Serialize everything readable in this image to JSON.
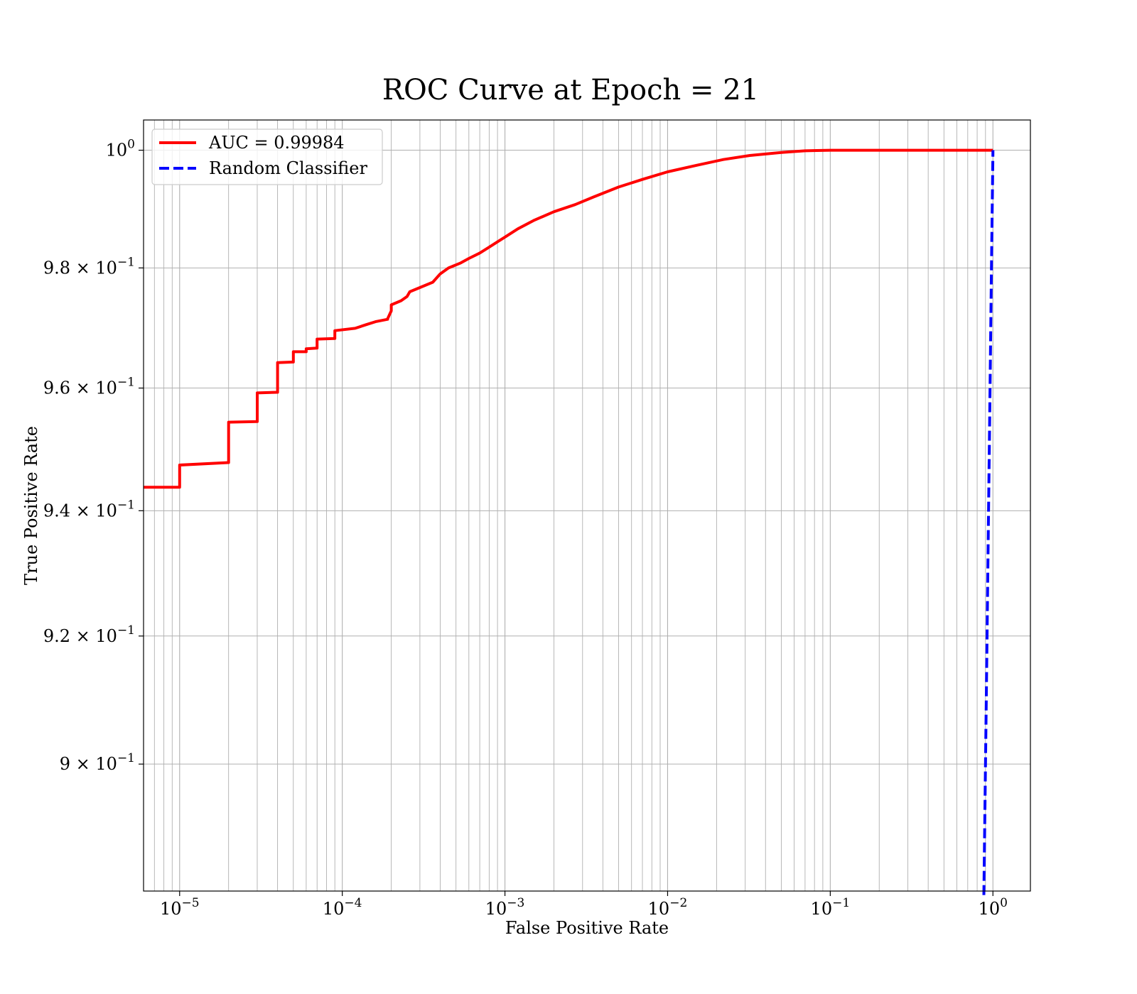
{
  "chart_data": {
    "type": "line",
    "title": "ROC Curve at Epoch = 21",
    "xlabel": "False Positive Rate",
    "ylabel": "True Positive Rate",
    "xscale": "log",
    "yscale": "log",
    "xlim": [
      6e-06,
      1.7
    ],
    "ylim": [
      0.8806,
      1.0052
    ],
    "grid": true,
    "grid_which": "both",
    "legend_position": "upper-left",
    "x_tick_labels": [
      {
        "base": "10",
        "exp": "−5",
        "value": 1e-05
      },
      {
        "base": "10",
        "exp": "−4",
        "value": 0.0001
      },
      {
        "base": "10",
        "exp": "−3",
        "value": 0.001
      },
      {
        "base": "10",
        "exp": "−2",
        "value": 0.01
      },
      {
        "base": "10",
        "exp": "−1",
        "value": 0.1
      },
      {
        "base": "10",
        "exp": "0",
        "value": 1
      }
    ],
    "y_tick_labels": [
      {
        "mant": "",
        "base": "10",
        "exp": "0",
        "value": 1.0
      },
      {
        "mant": "9.8 × ",
        "base": "10",
        "exp": "−1",
        "value": 0.98
      },
      {
        "mant": "9.6 × ",
        "base": "10",
        "exp": "−1",
        "value": 0.96
      },
      {
        "mant": "9.4 × ",
        "base": "10",
        "exp": "−1",
        "value": 0.94
      },
      {
        "mant": "9.2 × ",
        "base": "10",
        "exp": "−1",
        "value": 0.92
      },
      {
        "mant": "9 × ",
        "base": "10",
        "exp": "−1",
        "value": 0.9
      }
    ],
    "series": [
      {
        "name": "AUC = 0.99984",
        "color": "#ff0000",
        "style": "solid",
        "x": [
          6e-06,
          1e-05,
          1e-05,
          2e-05,
          2e-05,
          3e-05,
          3e-05,
          4e-05,
          4e-05,
          5e-05,
          5e-05,
          6e-05,
          6e-05,
          7e-05,
          7e-05,
          9e-05,
          9e-05,
          0.00012,
          0.00014,
          0.00016,
          0.00019,
          0.00019,
          0.0002,
          0.0002,
          0.00023,
          0.00025,
          0.00026,
          0.0003,
          0.00036,
          0.0004,
          0.00045,
          0.00053,
          0.0006,
          0.0007,
          0.0008,
          0.0009,
          0.001,
          0.0012,
          0.0015,
          0.002,
          0.0027,
          0.0035,
          0.005,
          0.007,
          0.01,
          0.015,
          0.022,
          0.032,
          0.05,
          0.07,
          0.1,
          0.15,
          0.3,
          0.6,
          1.0
        ],
        "y": [
          0.9438,
          0.9438,
          0.9474,
          0.9478,
          0.9544,
          0.9545,
          0.9592,
          0.9593,
          0.9642,
          0.9643,
          0.966,
          0.966,
          0.9665,
          0.9666,
          0.9681,
          0.9682,
          0.9695,
          0.9699,
          0.9705,
          0.971,
          0.9714,
          0.9715,
          0.9728,
          0.9738,
          0.9745,
          0.9752,
          0.976,
          0.9767,
          0.9776,
          0.979,
          0.98,
          0.9808,
          0.9816,
          0.9825,
          0.9835,
          0.9844,
          0.9852,
          0.9866,
          0.988,
          0.9895,
          0.9907,
          0.992,
          0.9937,
          0.995,
          0.9963,
          0.9974,
          0.9984,
          0.9991,
          0.9996,
          0.9999,
          1.0,
          1.0,
          1.0,
          1.0,
          1.0
        ]
      },
      {
        "name": "Random Classifier",
        "color": "#0000ff",
        "style": "dashed",
        "x": [
          0.88,
          0.9,
          0.92,
          0.94,
          0.96,
          0.98,
          1.0
        ],
        "y": [
          0.88,
          0.9,
          0.92,
          0.94,
          0.96,
          0.98,
          1.0
        ]
      }
    ]
  }
}
